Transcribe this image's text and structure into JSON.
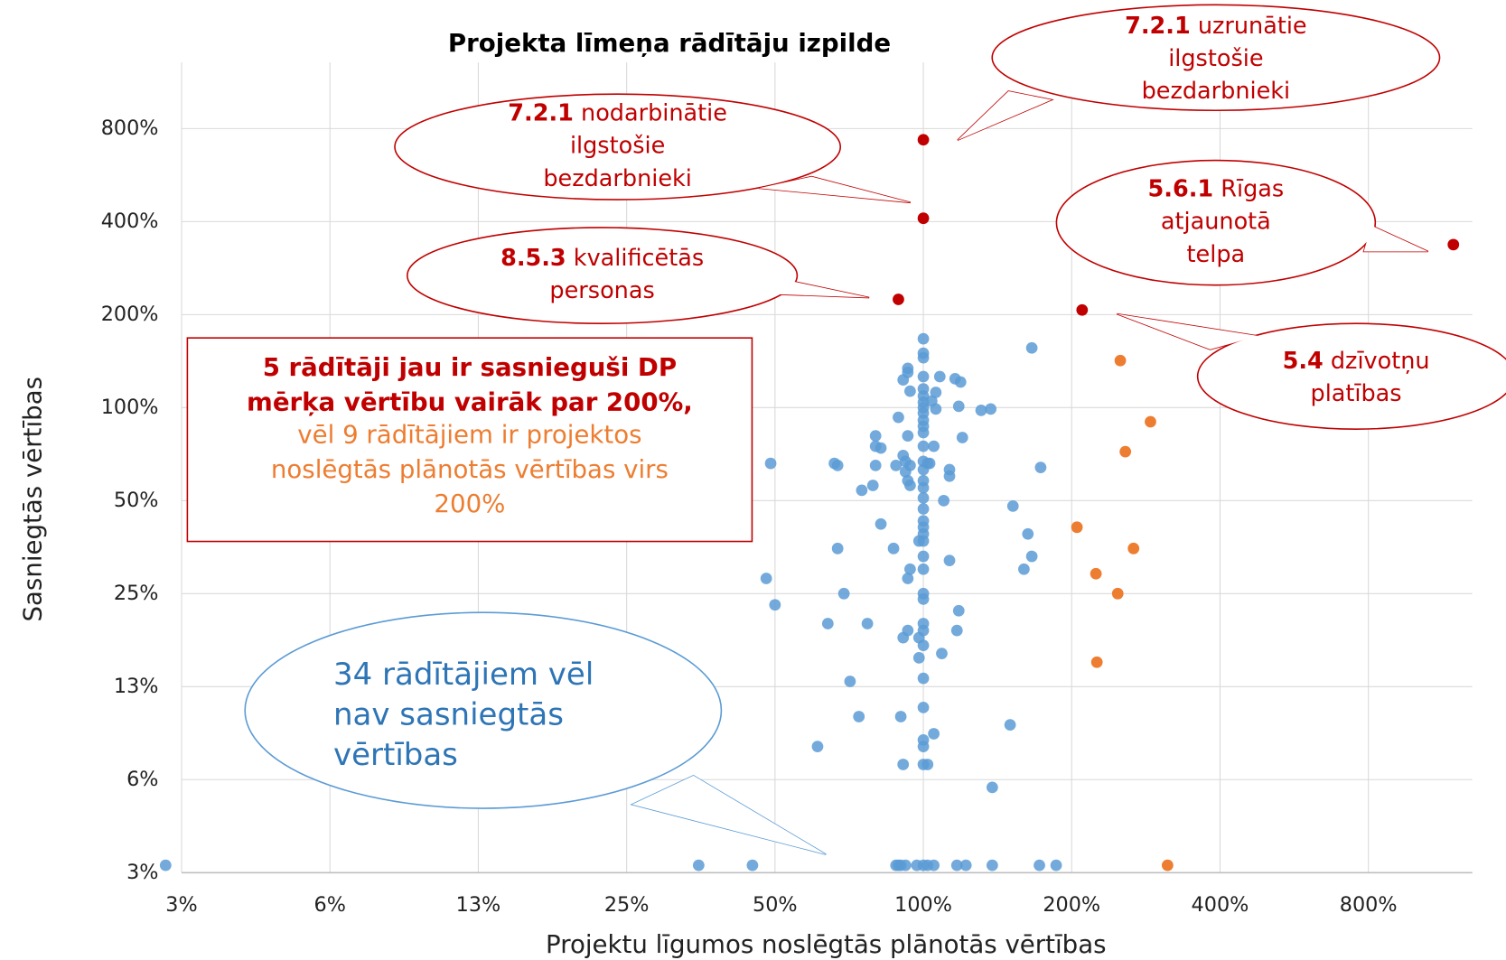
{
  "chart_data": {
    "type": "scatter",
    "title": "Projekta līmeņa rādītāju izpilde",
    "x_label": "Projektu līgumos noslēgtās plānotās vērtības",
    "y_label": "Sasniegtās vērtības",
    "xscale": "log",
    "yscale": "log",
    "grid": true,
    "xlim": [
      3.125,
      1300
    ],
    "ylim": [
      3.125,
      1310
    ],
    "xticks": [
      {
        "value": 3.125,
        "label": "3%"
      },
      {
        "value": 6.25,
        "label": "6%"
      },
      {
        "value": 12.5,
        "label": "13%"
      },
      {
        "value": 25,
        "label": "25%"
      },
      {
        "value": 50,
        "label": "50%"
      },
      {
        "value": 100,
        "label": "100%"
      },
      {
        "value": 200,
        "label": "200%"
      },
      {
        "value": 400,
        "label": "400%"
      },
      {
        "value": 800,
        "label": "800%"
      }
    ],
    "yticks": [
      {
        "value": 3.125,
        "label": "3%"
      },
      {
        "value": 6.25,
        "label": "6%"
      },
      {
        "value": 12.5,
        "label": "13%"
      },
      {
        "value": 25,
        "label": "25%"
      },
      {
        "value": 50,
        "label": "50%"
      },
      {
        "value": 100,
        "label": "100%"
      },
      {
        "value": 200,
        "label": "200%"
      },
      {
        "value": 400,
        "label": "400%"
      },
      {
        "value": 800,
        "label": "800%"
      }
    ],
    "series": [
      {
        "color": "#5b9bd5",
        "x": [
          2.9,
          35,
          45,
          88,
          89,
          90,
          92,
          97,
          100,
          102,
          105,
          117,
          122,
          138,
          172,
          186,
          100,
          100,
          100,
          166,
          93,
          93,
          108,
          100,
          116,
          119,
          91,
          94,
          100,
          106,
          100,
          104,
          100,
          100,
          100,
          118,
          106,
          131,
          137,
          89,
          100,
          100,
          100,
          80,
          80,
          93,
          120,
          82,
          105,
          100,
          91,
          92,
          100,
          49,
          66,
          67,
          80,
          88,
          94,
          102,
          103,
          92,
          113,
          113,
          173,
          100,
          100,
          93,
          94,
          79,
          75,
          100,
          100,
          110,
          100,
          152,
          100,
          100,
          82,
          100,
          163,
          100,
          98,
          67,
          87,
          100,
          166,
          113,
          94,
          100,
          160,
          93,
          48,
          100,
          100,
          69,
          50,
          118,
          100,
          100,
          77,
          64,
          93,
          91,
          117,
          98,
          100,
          109,
          98,
          100,
          71,
          100,
          74,
          90,
          150,
          105,
          100,
          100,
          61,
          100,
          102,
          91,
          138
        ],
        "y": [
          3.3,
          3.3,
          3.3,
          3.3,
          3.3,
          3.3,
          3.3,
          3.3,
          3.3,
          3.3,
          3.3,
          3.3,
          3.3,
          3.3,
          3.3,
          3.3,
          167,
          150,
          145,
          156,
          134,
          130,
          126,
          126,
          124,
          121,
          123,
          113,
          115,
          112,
          109,
          105,
          104,
          100,
          96,
          101,
          99,
          98,
          99,
          93,
          91,
          87,
          83,
          81,
          75,
          81,
          80,
          74,
          75,
          75,
          70,
          67,
          67,
          66,
          66,
          65,
          65,
          65,
          65,
          66,
          66,
          62,
          63,
          60,
          64,
          63,
          58,
          58,
          56,
          56,
          54,
          55,
          51,
          50,
          47,
          48,
          43,
          41,
          42,
          39,
          39,
          37,
          37,
          35,
          35,
          33,
          33,
          32,
          30,
          30,
          30,
          28,
          28,
          25,
          24,
          25,
          23,
          22,
          20,
          19,
          20,
          20,
          19,
          18,
          19,
          18,
          17,
          16,
          15.5,
          13.3,
          13,
          10.7,
          10,
          10,
          9.4,
          8.8,
          8.4,
          8,
          8,
          7,
          7,
          7,
          5.9
        ]
      },
      {
        "color": "#ed7d31",
        "x": [
          251,
          289,
          257,
          205,
          267,
          224,
          248,
          225,
          313
        ],
        "y": [
          142,
          90,
          72,
          41,
          35,
          29,
          25,
          15,
          3.3
        ]
      },
      {
        "color": "#c00000",
        "x": [
          100,
          100,
          89,
          210,
          1190
        ],
        "y": [
          736,
          410,
          224,
          207,
          337
        ]
      }
    ],
    "annotations": [
      {
        "label": "7.2.1",
        "lines": [
          "uzrunātie",
          "ilgstošie",
          "bezdarbnieki"
        ]
      },
      {
        "label": "7.2.1",
        "lines": [
          "nodarbinātie",
          "ilgstošie",
          "bezdarbnieki"
        ]
      },
      {
        "label": "8.5.3",
        "lines": [
          "kvalificētās",
          "personas"
        ]
      },
      {
        "label": "5.6.1",
        "lines": [
          "Rīgas",
          "atjaunotā",
          "telpa"
        ]
      },
      {
        "label": "5.4",
        "lines": [
          "dzīvotņu",
          "platības"
        ]
      }
    ],
    "note": {
      "bold_lines": [
        "5 rādītāji jau ir sasnieguši DP",
        "mērķa vērtību vairāk par 200%,"
      ],
      "lines": [
        "vēl 9 rādītājiem ir projektos",
        "noslēgtās plānotās vērtības virs",
        "200%"
      ]
    },
    "blue_note": [
      "34 rādītājiem vēl",
      "nav sasniegtās",
      "vērtības"
    ]
  }
}
